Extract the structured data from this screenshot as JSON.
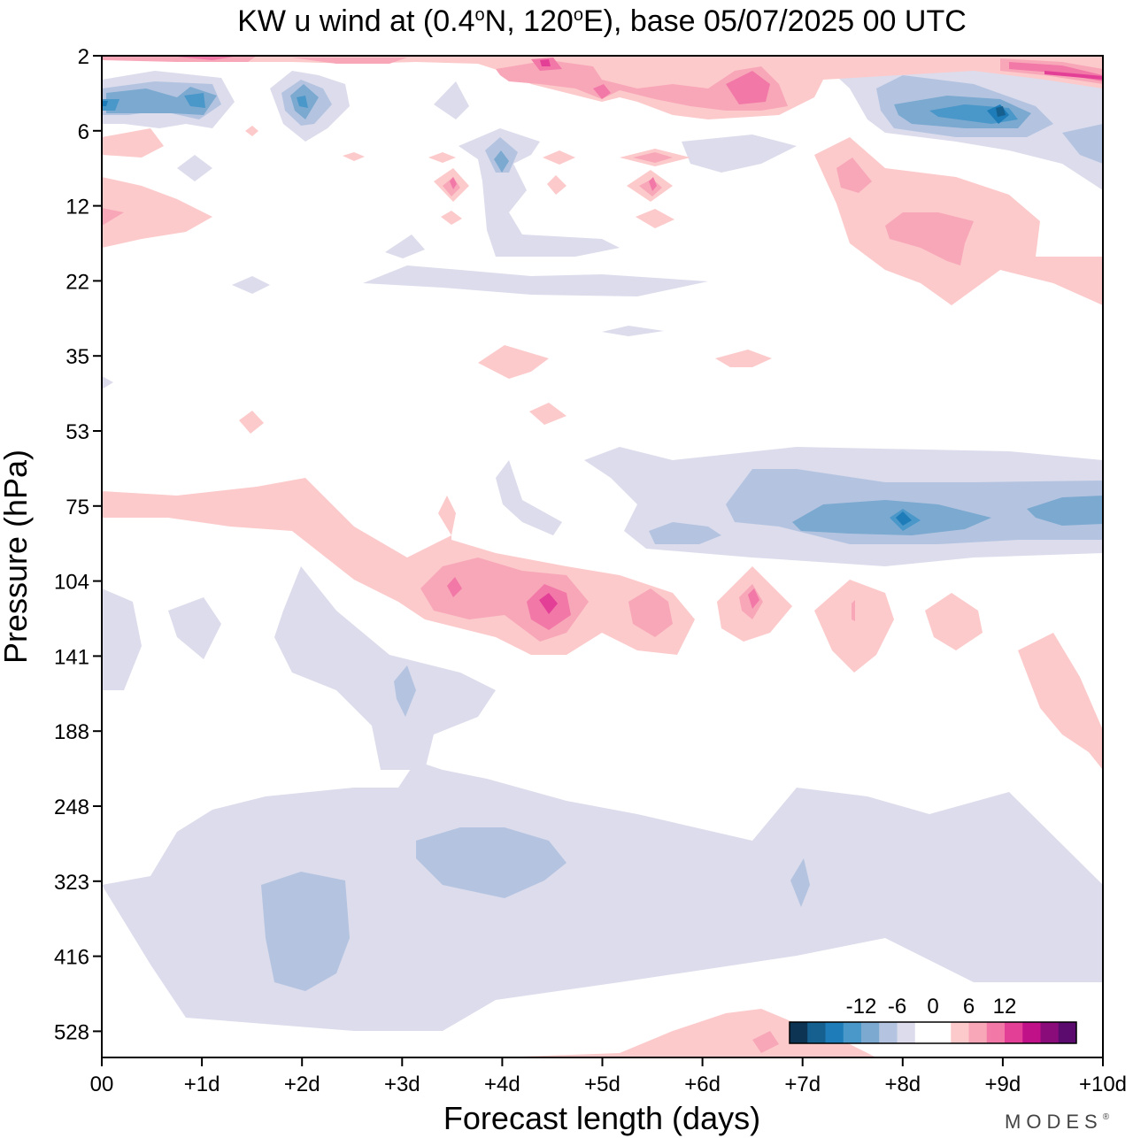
{
  "chart_data": {
    "type": "contour",
    "title": "KW u wind at (0.4°N, 120°E),  base 05/07/2025  00 UTC",
    "title_parts": {
      "before_deg1": "KW u wind at (0.4",
      "deg1": "o",
      "after_deg1": "N, 120",
      "deg2": "o",
      "after_deg2": "E),  base 05/07/2025  00 UTC"
    },
    "xlabel": "Forecast length (days)",
    "ylabel": "Pressure (hPa)",
    "xlim": [
      0,
      10
    ],
    "x_ticks": [
      "00",
      "+1d",
      "+2d",
      "+3d",
      "+4d",
      "+5d",
      "+6d",
      "+7d",
      "+8d",
      "+9d",
      "+10d"
    ],
    "y_scale": "log",
    "ylim": [
      2,
      640
    ],
    "y_ticks": [
      2,
      6,
      12,
      22,
      35,
      53,
      75,
      104,
      141,
      188,
      248,
      323,
      416,
      528
    ],
    "colorbar": {
      "labels": [
        "-12",
        "-6",
        "0",
        "6",
        "12"
      ],
      "label_values": [
        -12,
        -6,
        0,
        6,
        12
      ],
      "levels": [
        -18,
        -15,
        -12,
        -9,
        -6,
        -3,
        0,
        3,
        6,
        9,
        12,
        15,
        18
      ],
      "colors": [
        "#0d3553",
        "#15608f",
        "#1e7cb8",
        "#4a97c9",
        "#7ca9d0",
        "#b4c4e0",
        "#dcdcec",
        "#ffffff",
        "#ffffff",
        "#fccaca",
        "#f8a7b9",
        "#f278a7",
        "#e33f97",
        "#c11189",
        "#8a0c7b",
        "#5b0a6e"
      ]
    },
    "features": [
      {
        "name": "negative core near top",
        "x": [
          0,
          0.5,
          1.0
        ],
        "p": [
          4,
          4,
          4
        ],
        "u": [
          -9,
          -6,
          -9
        ]
      },
      {
        "name": "positive band top",
        "x": [
          1,
          2,
          3,
          4,
          5,
          6,
          9,
          10
        ],
        "p": [
          2,
          2,
          2,
          2.5,
          4,
          4,
          2.5,
          3
        ],
        "u": [
          3,
          3,
          6,
          9,
          6,
          9,
          12,
          15
        ]
      },
      {
        "name": "negative core upper right",
        "x": [
          8,
          8.5,
          9,
          9.5,
          10
        ],
        "p": [
          5,
          5,
          5,
          5,
          8
        ],
        "u": [
          -6,
          -9,
          -12,
          -6,
          -6
        ]
      },
      {
        "name": "positive lobe right",
        "x": [
          7.5,
          8.5,
          9.5
        ],
        "p": [
          10,
          14,
          18
        ],
        "u": [
          6,
          6,
          3
        ]
      },
      {
        "name": "negative band 75 hPa",
        "x": [
          6,
          7,
          8,
          9,
          10
        ],
        "p": [
          75,
          75,
          75,
          75,
          75
        ],
        "u": [
          -3,
          -6,
          -9,
          -6,
          -6
        ]
      },
      {
        "name": "positive band ~100 hPa",
        "x": [
          0,
          2,
          3.5,
          4.5,
          5.5,
          6.5,
          7.5,
          8.5
        ],
        "p": [
          75,
          80,
          104,
          110,
          115,
          110,
          115,
          115
        ],
        "u": [
          3,
          3,
          9,
          12,
          6,
          6,
          3,
          3
        ]
      },
      {
        "name": "negative mid-troposphere",
        "x": [
          1,
          2,
          3,
          4,
          5,
          6,
          7,
          8,
          9,
          10
        ],
        "p": [
          400,
          360,
          300,
          300,
          280,
          280,
          300,
          300,
          300,
          320
        ],
        "u": [
          -3,
          -6,
          -3,
          -6,
          -3,
          -3,
          -3,
          -3,
          -3,
          -3
        ]
      }
    ]
  },
  "branding": {
    "text": "MODES",
    "mark": "®"
  }
}
